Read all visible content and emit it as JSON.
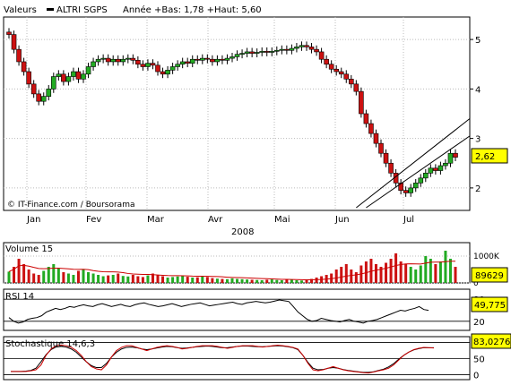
{
  "header": {
    "menu_label": "Valeurs",
    "symbol": "ALTRI SGPS",
    "stats": "Année +Bas: 1,78 +Haut: 5,60"
  },
  "copyright": "© IT-Finance.com / Boursorama",
  "year_label": "2008",
  "colors": {
    "up": "#22aa22",
    "down": "#cc1111",
    "volume_ma": "#cc0000",
    "stoch_k": "#cc0000",
    "stoch_d": "#000000",
    "value_box": "#ffff00"
  },
  "chart_data": [
    {
      "type": "candlestick",
      "x_labels": [
        "Jan",
        "Fev",
        "Mar",
        "Avr",
        "Mai",
        "Jun",
        "Jul"
      ],
      "y_ticks": [
        2,
        3,
        4,
        5
      ],
      "ylim": [
        1.6,
        5.4
      ],
      "last_value": "2,62",
      "close_values": [
        5.1,
        4.8,
        4.55,
        4.35,
        4.1,
        3.9,
        3.75,
        3.85,
        4.0,
        4.25,
        4.3,
        4.15,
        4.25,
        4.35,
        4.2,
        4.3,
        4.45,
        4.55,
        4.6,
        4.62,
        4.55,
        4.6,
        4.55,
        4.6,
        4.62,
        4.58,
        4.5,
        4.45,
        4.52,
        4.48,
        4.35,
        4.3,
        4.38,
        4.45,
        4.5,
        4.55,
        4.52,
        4.6,
        4.58,
        4.62,
        4.6,
        4.55,
        4.6,
        4.58,
        4.62,
        4.65,
        4.7,
        4.72,
        4.75,
        4.72,
        4.74,
        4.76,
        4.74,
        4.76,
        4.78,
        4.8,
        4.78,
        4.82,
        4.85,
        4.88,
        4.85,
        4.8,
        4.75,
        4.6,
        4.5,
        4.4,
        4.35,
        4.3,
        4.2,
        4.1,
        3.95,
        3.5,
        3.3,
        3.1,
        2.9,
        2.7,
        2.5,
        2.3,
        2.1,
        1.95,
        1.9,
        2.0,
        2.1,
        2.2,
        2.3,
        2.4,
        2.35,
        2.45,
        2.5,
        2.7,
        2.62
      ],
      "upper_trend": {
        "from": [
          70,
          1.6
        ],
        "to": [
          91,
          3.4
        ]
      },
      "lower_trend": {
        "from": [
          72,
          1.6
        ],
        "to": [
          91,
          3.05
        ]
      }
    },
    {
      "type": "bar",
      "name": "Volume 15",
      "y_ticks": [
        {
          "v": 1000,
          "label": "1000K"
        },
        {
          "v": 0,
          "label": "0"
        }
      ],
      "ylim": [
        0,
        1400
      ],
      "last_value": "89629",
      "values": [
        420,
        600,
        900,
        700,
        500,
        350,
        300,
        450,
        600,
        700,
        550,
        400,
        350,
        300,
        450,
        500,
        400,
        350,
        300,
        250,
        280,
        300,
        350,
        260,
        240,
        300,
        250,
        220,
        280,
        350,
        300,
        250,
        200,
        220,
        240,
        260,
        230,
        200,
        210,
        250,
        220,
        180,
        160,
        150,
        140,
        170,
        150,
        140,
        130,
        120,
        110,
        100,
        120,
        130,
        110,
        100,
        140,
        120,
        100,
        90,
        120,
        150,
        200,
        250,
        300,
        350,
        500,
        600,
        700,
        500,
        400,
        650,
        800,
        900,
        700,
        600,
        750,
        900,
        1100,
        800,
        700,
        600,
        500,
        650,
        1000,
        900,
        700,
        800,
        1200,
        900,
        600
      ]
    },
    {
      "type": "line",
      "name": "RSI 14",
      "y_ticks": [
        {
          "v": 80,
          "label": "80"
        },
        {
          "v": 20,
          "label": "20"
        }
      ],
      "ylim": [
        0,
        100
      ],
      "last_value": "49,775",
      "values": [
        30,
        20,
        15,
        18,
        25,
        28,
        30,
        35,
        45,
        50,
        55,
        52,
        55,
        60,
        58,
        62,
        65,
        62,
        60,
        65,
        68,
        64,
        60,
        63,
        66,
        62,
        60,
        65,
        68,
        70,
        66,
        63,
        60,
        62,
        65,
        68,
        64,
        60,
        63,
        66,
        68,
        70,
        66,
        62,
        64,
        66,
        68,
        70,
        72,
        68,
        66,
        70,
        72,
        74,
        72,
        70,
        72,
        75,
        78,
        76,
        74,
        60,
        45,
        35,
        25,
        20,
        22,
        28,
        25,
        22,
        20,
        18,
        22,
        25,
        20,
        18,
        15,
        20,
        22,
        25,
        30,
        35,
        40,
        45,
        50,
        48,
        52,
        55,
        60,
        52,
        49.775
      ]
    },
    {
      "type": "line",
      "name": "Stochastique 14,6,3",
      "y_ticks": [
        {
          "v": 100,
          "label": "100"
        },
        {
          "v": 50,
          "label": "50"
        },
        {
          "v": 0,
          "label": "0"
        }
      ],
      "ylim": [
        -10,
        110
      ],
      "last_value": "83,0276",
      "k_values": [
        10,
        10,
        10,
        10,
        12,
        15,
        30,
        60,
        80,
        90,
        92,
        90,
        85,
        75,
        60,
        40,
        25,
        18,
        15,
        30,
        55,
        75,
        85,
        90,
        90,
        85,
        80,
        75,
        80,
        85,
        88,
        90,
        88,
        85,
        80,
        82,
        85,
        88,
        90,
        90,
        90,
        88,
        85,
        82,
        85,
        88,
        90,
        90,
        90,
        88,
        86,
        88,
        90,
        92,
        90,
        88,
        85,
        80,
        60,
        35,
        15,
        12,
        15,
        20,
        25,
        20,
        15,
        12,
        10,
        8,
        6,
        5,
        8,
        12,
        15,
        20,
        30,
        45,
        60,
        70,
        78,
        82,
        85,
        84,
        83
      ],
      "d_values": [
        10,
        10,
        10,
        11,
        13,
        20,
        40,
        62,
        78,
        86,
        88,
        86,
        80,
        70,
        55,
        40,
        28,
        22,
        22,
        35,
        55,
        70,
        80,
        85,
        86,
        84,
        80,
        78,
        80,
        83,
        86,
        88,
        87,
        84,
        82,
        83,
        85,
        87,
        88,
        89,
        88,
        86,
        84,
        84,
        86,
        88,
        89,
        89,
        88,
        87,
        87,
        88,
        89,
        90,
        89,
        87,
        84,
        78,
        60,
        38,
        20,
        15,
        16,
        20,
        22,
        20,
        16,
        13,
        11,
        9,
        7,
        7,
        9,
        13,
        17,
        24,
        34,
        48,
        60,
        70,
        77,
        81,
        84,
        84,
        84
      ]
    }
  ]
}
